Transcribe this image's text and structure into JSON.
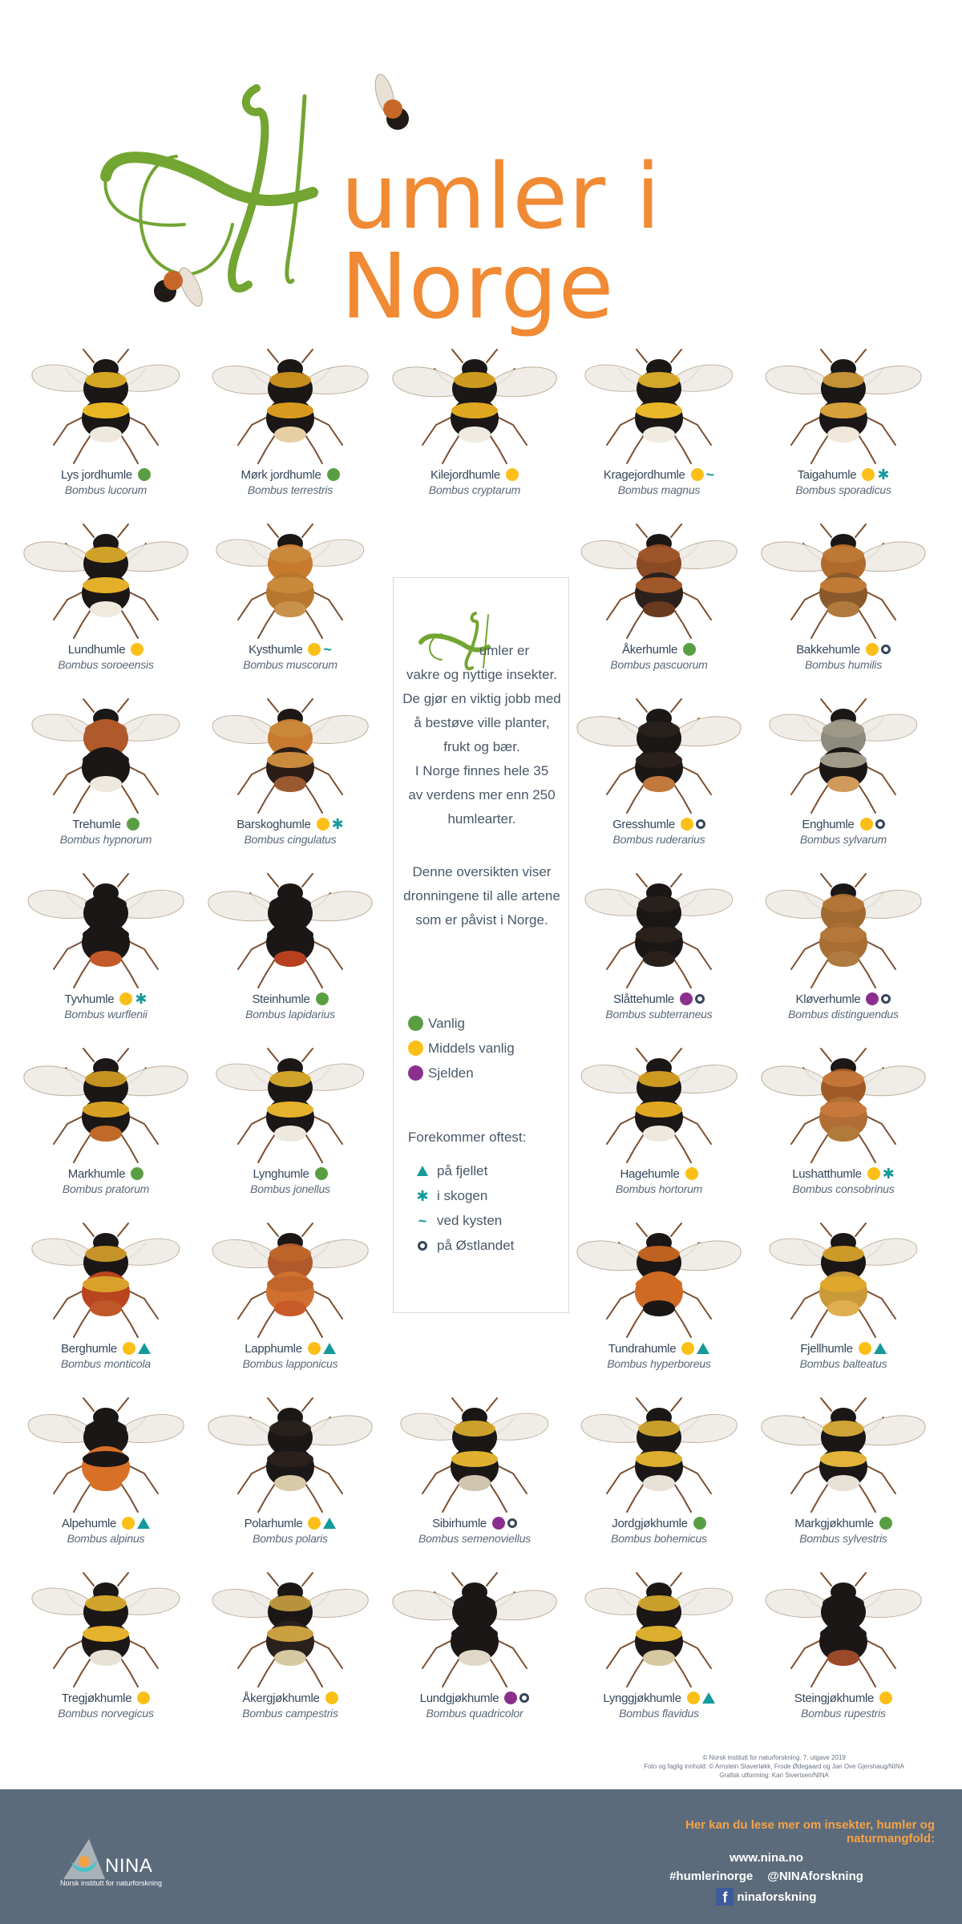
{
  "header": {
    "title_initial": "H",
    "title_rest": "umler i Norge",
    "colors": {
      "script_green": "#72a532",
      "title_orange": "#f08a34"
    }
  },
  "legend_colors": {
    "vanlig": "#5a9e43",
    "middels": "#fbbf18",
    "sjelden": "#8b2f8f",
    "habitat": "#159a9c",
    "ring": "#35465a"
  },
  "species": [
    {
      "common": "Lys jordhumle",
      "latin": "Bombus lucorum",
      "freq": "vanlig",
      "habitat": []
    },
    {
      "common": "Mørk jordhumle",
      "latin": "Bombus terrestris",
      "freq": "vanlig",
      "habitat": []
    },
    {
      "common": "Kilejordhumle",
      "latin": "Bombus cryptarum",
      "freq": "middels",
      "habitat": []
    },
    {
      "common": "Kragejordhumle",
      "latin": "Bombus magnus",
      "freq": "middels",
      "habitat": [
        "kyst"
      ]
    },
    {
      "common": "Taigahumle",
      "latin": "Bombus sporadicus",
      "freq": "middels",
      "habitat": [
        "skog"
      ]
    },
    {
      "common": "Lundhumle",
      "latin": "Bombus soroeensis",
      "freq": "middels",
      "habitat": []
    },
    {
      "common": "Kysthumle",
      "latin": "Bombus muscorum",
      "freq": "middels",
      "habitat": [
        "kyst"
      ]
    },
    {
      "common": "Åkerhumle",
      "latin": "Bombus pascuorum",
      "freq": "vanlig",
      "habitat": []
    },
    {
      "common": "Bakkehumle",
      "latin": "Bombus humilis",
      "freq": "middels",
      "habitat": [
        "ost"
      ]
    },
    {
      "common": "Trehumle",
      "latin": "Bombus hypnorum",
      "freq": "vanlig",
      "habitat": []
    },
    {
      "common": "Barskoghumle",
      "latin": "Bombus cingulatus",
      "freq": "middels",
      "habitat": [
        "skog"
      ]
    },
    {
      "common": "Gresshumle",
      "latin": "Bombus ruderarius",
      "freq": "middels",
      "habitat": [
        "ost"
      ]
    },
    {
      "common": "Enghumle",
      "latin": "Bombus sylvarum",
      "freq": "middels",
      "habitat": [
        "ost"
      ]
    },
    {
      "common": "Tyvhumle",
      "latin": "Bombus wurflenii",
      "freq": "middels",
      "habitat": [
        "skog"
      ]
    },
    {
      "common": "Steinhumle",
      "latin": "Bombus lapidarius",
      "freq": "vanlig",
      "habitat": []
    },
    {
      "common": "Slåttehumle",
      "latin": "Bombus subterraneus",
      "freq": "sjelden",
      "habitat": [
        "ost"
      ]
    },
    {
      "common": "Kløverhumle",
      "latin": "Bombus distinguendus",
      "freq": "sjelden",
      "habitat": [
        "ost"
      ]
    },
    {
      "common": "Markhumle",
      "latin": "Bombus pratorum",
      "freq": "vanlig",
      "habitat": []
    },
    {
      "common": "Lynghumle",
      "latin": "Bombus jonellus",
      "freq": "vanlig",
      "habitat": []
    },
    {
      "common": "Hagehumle",
      "latin": "Bombus hortorum",
      "freq": "middels",
      "habitat": []
    },
    {
      "common": "Lushatthumle",
      "latin": "Bombus consobrinus",
      "freq": "middels",
      "habitat": [
        "skog"
      ]
    },
    {
      "common": "Berghumle",
      "latin": "Bombus monticola",
      "freq": "middels",
      "habitat": [
        "fjell"
      ]
    },
    {
      "common": "Lapphumle",
      "latin": "Bombus lapponicus",
      "freq": "middels",
      "habitat": [
        "fjell"
      ]
    },
    {
      "common": "Tundrahumle",
      "latin": "Bombus hyperboreus",
      "freq": "middels",
      "habitat": [
        "fjell"
      ]
    },
    {
      "common": "Fjellhumle",
      "latin": "Bombus balteatus",
      "freq": "middels",
      "habitat": [
        "fjell"
      ]
    },
    {
      "common": "Alpehumle",
      "latin": "Bombus alpinus",
      "freq": "middels",
      "habitat": [
        "fjell"
      ]
    },
    {
      "common": "Polarhumle",
      "latin": "Bombus polaris",
      "freq": "middels",
      "habitat": [
        "fjell"
      ]
    },
    {
      "common": "Sibirhumle",
      "latin": "Bombus semenoviellus",
      "freq": "sjelden",
      "habitat": [
        "ost"
      ]
    },
    {
      "common": "Jordgjøkhumle",
      "latin": "Bombus bohemicus",
      "freq": "vanlig",
      "habitat": []
    },
    {
      "common": "Markgjøkhumle",
      "latin": "Bombus sylvestris",
      "freq": "vanlig",
      "habitat": []
    },
    {
      "common": "Tregjøkhumle",
      "latin": "Bombus norvegicus",
      "freq": "middels",
      "habitat": []
    },
    {
      "common": "Åkergjøkhumle",
      "latin": "Bombus campestris",
      "freq": "middels",
      "habitat": []
    },
    {
      "common": "Lundgjøkhumle",
      "latin": "Bombus quadricolor",
      "freq": "sjelden",
      "habitat": [
        "ost"
      ]
    },
    {
      "common": "Lynggjøkhumle",
      "latin": "Bombus flavidus",
      "freq": "middels",
      "habitat": [
        "fjell"
      ]
    },
    {
      "common": "Steingjøkhumle",
      "latin": "Bombus rupestris",
      "freq": "middels",
      "habitat": []
    }
  ],
  "infobox": {
    "initial": "H",
    "para1_first": "umler er",
    "para1_lines": [
      "vakre og nyttige insekter.",
      "De gjør en viktig jobb med",
      "å bestøve ville planter,",
      "frukt og bær.",
      "I Norge finnes hele 35",
      "av verdens mer enn 250",
      "humlearter."
    ],
    "para2_lines": [
      "Denne oversikten viser",
      "dronningene til alle artene",
      "som er påvist i Norge."
    ],
    "legend_freq": [
      {
        "key": "vanlig",
        "label": "Vanlig"
      },
      {
        "key": "middels",
        "label": "Middels vanlig"
      },
      {
        "key": "sjelden",
        "label": "Sjelden"
      }
    ],
    "legend_habitat_title": "Forekommer oftest:",
    "legend_habitat": [
      {
        "key": "fjell",
        "icon": "triangle-icon",
        "label": "på fjellet"
      },
      {
        "key": "skog",
        "icon": "asterisk-icon",
        "label": "i skogen"
      },
      {
        "key": "kyst",
        "icon": "tilde-icon",
        "label": "ved kysten"
      },
      {
        "key": "ost",
        "icon": "ring-icon",
        "label": "på Østlandet"
      }
    ]
  },
  "credits": {
    "line1": "© Norsk institutt for naturforskning. 7. utgave 2019",
    "line2": "Foto og faglig innhold: © Arnstein Staverløkk, Frode Ødegaard og Jan Ove Gjershaug/NINA",
    "line3": "Grafisk utforming: Kari Sivertsen/NINA"
  },
  "footer": {
    "logo_name": "NINA",
    "logo_sub": "Norsk institutt for naturforskning",
    "headline": "Her kan du lese mer om insekter, humler og naturmangfold:",
    "website": "www.nina.no",
    "hashtag": "#humlerinorge",
    "twitter": "@NINAforskning",
    "facebook_icon": "f",
    "facebook": "ninaforskning"
  }
}
